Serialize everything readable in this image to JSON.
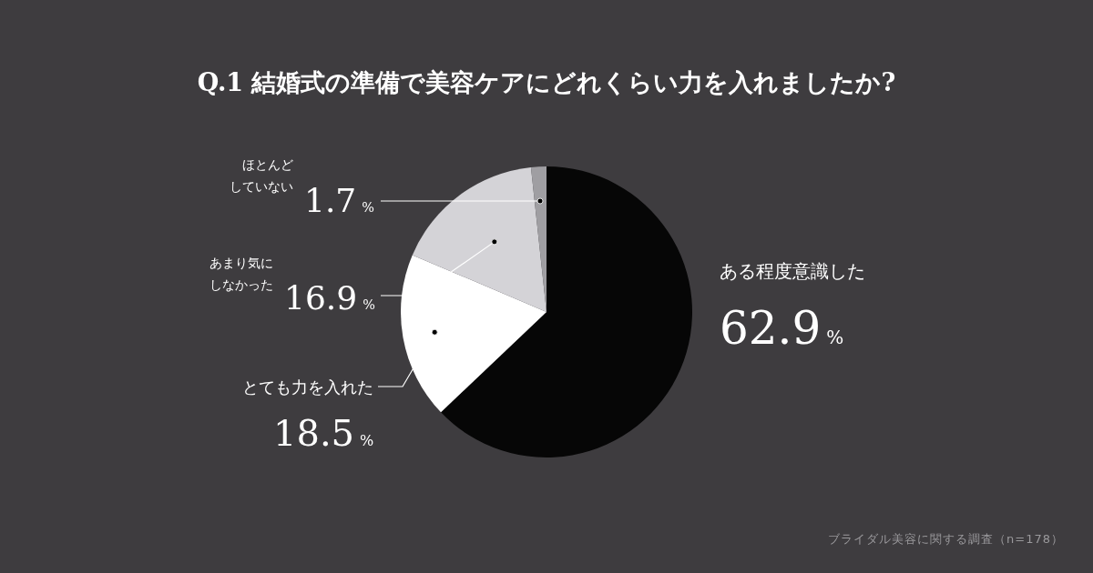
{
  "chart_data": {
    "type": "pie",
    "title": "Q.1  結婚式の準備で美容ケアにどれくらい力を入れましたか?",
    "categories": [
      "ある程度意識した",
      "とても力を入れた",
      "あまり気にしなかった",
      "ほとんどしていない"
    ],
    "values": [
      62.9,
      18.5,
      16.9,
      1.7
    ],
    "colors": [
      "#060606",
      "#ffffff",
      "#d4d3d7",
      "#9f9ea2"
    ],
    "value_labels": [
      "62.9%",
      "18.5%",
      "16.9%",
      "1.7%"
    ],
    "annotations": [
      "ブライダル美容に関する調査（n=178）"
    ]
  }
}
